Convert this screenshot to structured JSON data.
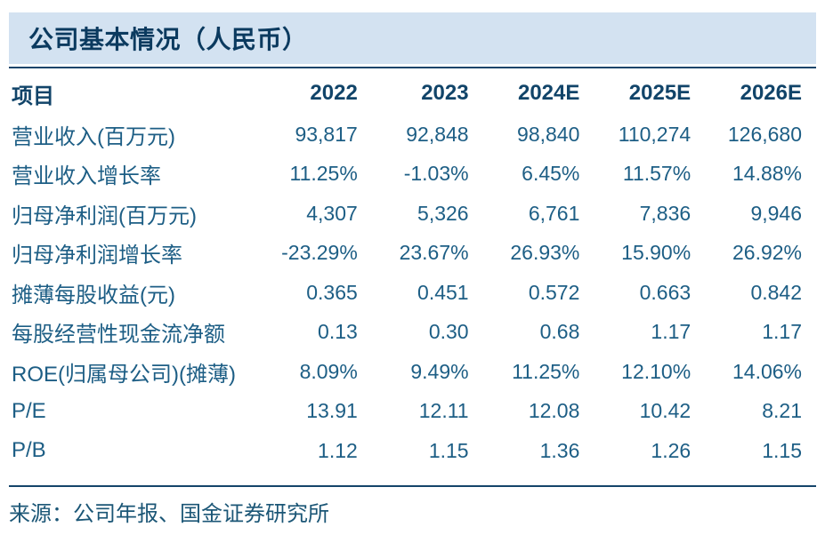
{
  "panel": {
    "title": "公司基本情况（人民币）",
    "source": "来源：公司年报、国金证券研究所"
  },
  "table": {
    "header": {
      "item_label": "项目",
      "years": [
        "2022",
        "2023",
        "2024E",
        "2025E",
        "2026E"
      ]
    },
    "rows": [
      {
        "label": "营业收入(百万元)",
        "values": [
          "93,817",
          "92,848",
          "98,840",
          "110,274",
          "126,680"
        ]
      },
      {
        "label": "营业收入增长率",
        "values": [
          "11.25%",
          "-1.03%",
          "6.45%",
          "11.57%",
          "14.88%"
        ]
      },
      {
        "label": "归母净利润(百万元)",
        "values": [
          "4,307",
          "5,326",
          "6,761",
          "7,836",
          "9,946"
        ]
      },
      {
        "label": "归母净利润增长率",
        "values": [
          "-23.29%",
          "23.67%",
          "26.93%",
          "15.90%",
          "26.92%"
        ]
      },
      {
        "label": "摊薄每股收益(元)",
        "values": [
          "0.365",
          "0.451",
          "0.572",
          "0.663",
          "0.842"
        ]
      },
      {
        "label": "每股经营性现金流净额",
        "values": [
          "0.13",
          "0.30",
          "0.68",
          "1.17",
          "1.17"
        ]
      },
      {
        "label": "ROE(归属母公司)(摊薄)",
        "values": [
          "8.09%",
          "9.49%",
          "11.25%",
          "12.10%",
          "14.06%"
        ]
      },
      {
        "label": "P/E",
        "values": [
          "13.91",
          "12.11",
          "12.08",
          "10.42",
          "8.21"
        ]
      },
      {
        "label": "P/B",
        "values": [
          "1.12",
          "1.15",
          "1.36",
          "1.26",
          "1.15"
        ]
      }
    ]
  },
  "colors": {
    "banner_bg": "#d3e2f1",
    "title_text": "#0b3a5f",
    "header_text": "#114469",
    "body_text": "#1d5e85",
    "rule": "#15446a",
    "source_text": "#1b5676"
  }
}
